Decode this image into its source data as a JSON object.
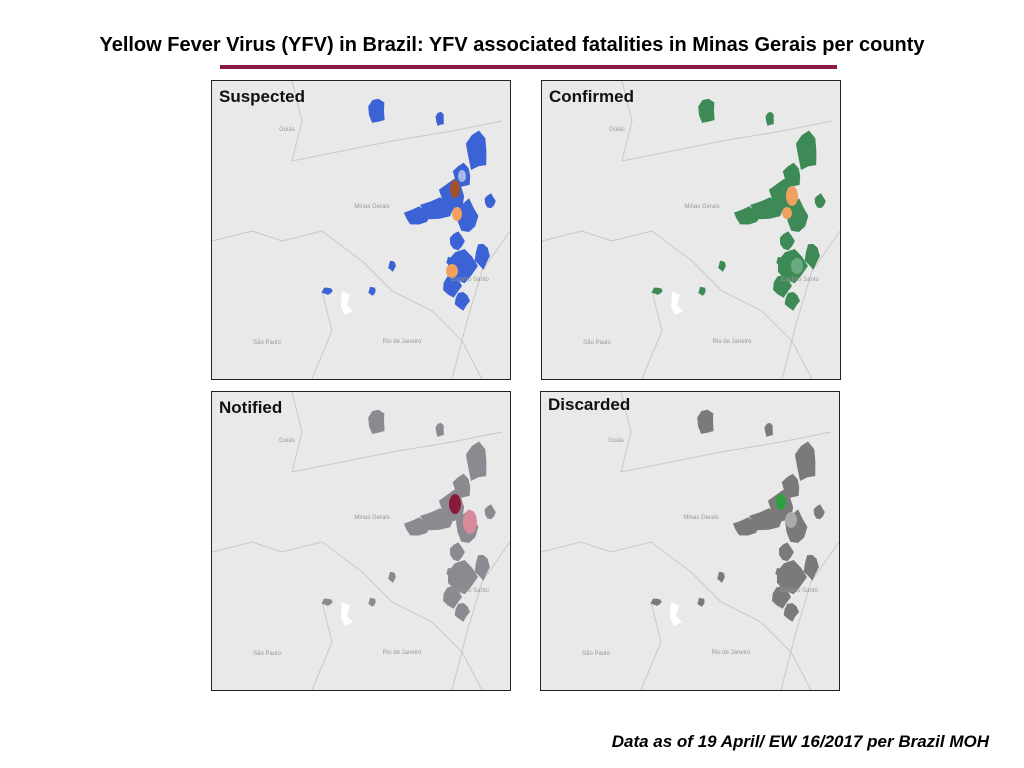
{
  "title": "Yellow Fever Virus (YFV) in Brazil: YFV associated fatalities in Minas Gerais per county",
  "panels": [
    {
      "label": "Suspected"
    },
    {
      "label": "Confirmed"
    },
    {
      "label": "Notified"
    },
    {
      "label": "Discarded"
    }
  ],
  "place_labels": [
    "Goiás",
    "Minas Gerais",
    "Espírito Santo",
    "São Paulo",
    "Rio de Janeiro"
  ],
  "footnote": "Data as of 19 April/ EW 16/2017 per Brazil MOH"
}
